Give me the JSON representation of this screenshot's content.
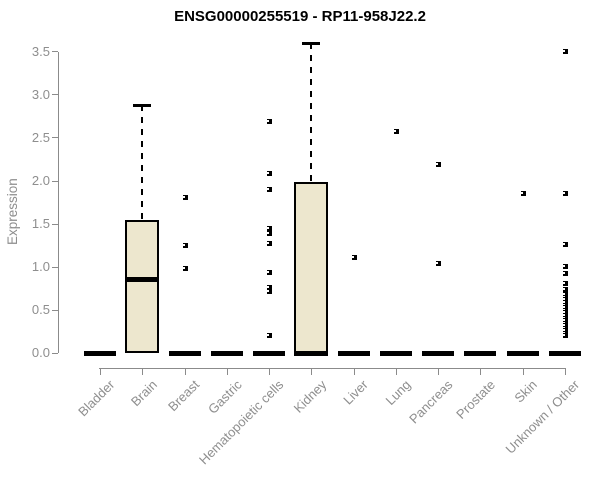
{
  "chart_data": {
    "type": "boxplot",
    "title": "ENSG00000255519 - RP11-958J22.2",
    "ylabel": "Expression",
    "ylim": [
      0,
      3.5
    ],
    "yticks": [
      0.0,
      0.5,
      1.0,
      1.5,
      2.0,
      2.5,
      3.0,
      3.5
    ],
    "ytick_labels": [
      "0.0",
      "0.5",
      "1.0",
      "1.5",
      "2.0",
      "2.5",
      "3.0",
      "3.5"
    ],
    "grid": "off",
    "legend": "none",
    "categories": [
      "Bladder",
      "Brain",
      "Breast",
      "Gastric",
      "Hematopoietic cells",
      "Kidney",
      "Liver",
      "Lung",
      "Pancreas",
      "Prostate",
      "Skin",
      "Unknown / Other"
    ],
    "series": [
      {
        "category": "Bladder",
        "q1": 0,
        "median": 0,
        "q3": 0,
        "whisker_high": 0,
        "outliers": []
      },
      {
        "category": "Brain",
        "q1": 0,
        "median": 0.86,
        "q3": 1.55,
        "whisker_high": 2.88,
        "outliers": []
      },
      {
        "category": "Breast",
        "q1": 0,
        "median": 0,
        "q3": 0,
        "whisker_high": 0,
        "outliers": [
          1.81,
          1.25,
          0.99
        ]
      },
      {
        "category": "Gastric",
        "q1": 0,
        "median": 0,
        "q3": 0,
        "whisker_high": 0,
        "outliers": []
      },
      {
        "category": "Hematopoietic cells",
        "q1": 0,
        "median": 0,
        "q3": 0,
        "whisker_high": 0,
        "outliers": [
          2.69,
          2.09,
          1.9,
          1.45,
          1.39,
          1.27,
          0.94,
          0.77,
          0.72,
          0.21
        ]
      },
      {
        "category": "Kidney",
        "q1": 0,
        "median": 0,
        "q3": 1.99,
        "whisker_high": 3.6,
        "outliers": []
      },
      {
        "category": "Liver",
        "q1": 0,
        "median": 0,
        "q3": 0,
        "whisker_high": 0,
        "outliers": [
          1.11
        ]
      },
      {
        "category": "Lung",
        "q1": 0,
        "median": 0,
        "q3": 0,
        "whisker_high": 0,
        "outliers": [
          2.58
        ]
      },
      {
        "category": "Pancreas",
        "q1": 0,
        "median": 0,
        "q3": 0,
        "whisker_high": 0,
        "outliers": [
          2.19,
          1.04
        ]
      },
      {
        "category": "Prostate",
        "q1": 0,
        "median": 0,
        "q3": 0,
        "whisker_high": 0,
        "outliers": []
      },
      {
        "category": "Skin",
        "q1": 0,
        "median": 0,
        "q3": 0,
        "whisker_high": 0,
        "outliers": [
          1.85
        ]
      },
      {
        "category": "Unknown / Other",
        "q1": 0,
        "median": 0,
        "q3": 0,
        "whisker_high": 0,
        "outliers": [
          3.5,
          1.85,
          1.26,
          1.01,
          0.93,
          0.81,
          0.74,
          0.68,
          0.65,
          0.62,
          0.59,
          0.56,
          0.53,
          0.5,
          0.47,
          0.44,
          0.41,
          0.38,
          0.35,
          0.32,
          0.29,
          0.26,
          0.23,
          0.21
        ]
      }
    ],
    "colors": {
      "box_fill": "#EDE7CE",
      "box_border": "#000000",
      "median": "#000000",
      "whisker": "#000000",
      "outlier": "#000000",
      "axis": "#8B8B8B",
      "tick_label": "#8E8E8E",
      "title": "#000000",
      "background": "#FFFFFF"
    }
  }
}
